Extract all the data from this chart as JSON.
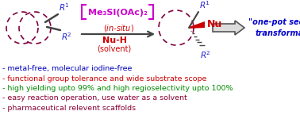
{
  "bg_color": "#ffffff",
  "bullet_lines": [
    {
      "text": "- metal-free, molecular iodine-free",
      "color": "#0000bb"
    },
    {
      "text": "- functional group tolerance and wide substrate scope",
      "color": "#cc0000"
    },
    {
      "text": "- high yielding upto 99% and high regioselectivity upto 100%",
      "color": "#008800"
    },
    {
      "text": "- easy reaction operation, use water as a solvent",
      "color": "#880033"
    },
    {
      "text": "- pharmaceutical relevent scaffolds",
      "color": "#880033"
    }
  ],
  "reagent_box_color": "#cc00cc",
  "ring_color": "#800040",
  "r1_color": "#2222cc",
  "r2_color": "#2222cc",
  "nu_color": "#cc0000",
  "red_color": "#cc0000",
  "one_pot_color": "#0000cc",
  "bond_color": "#444444",
  "arrow_body_color": "#444444",
  "big_arrow_face": "#dddddd",
  "big_arrow_edge": "#555555"
}
